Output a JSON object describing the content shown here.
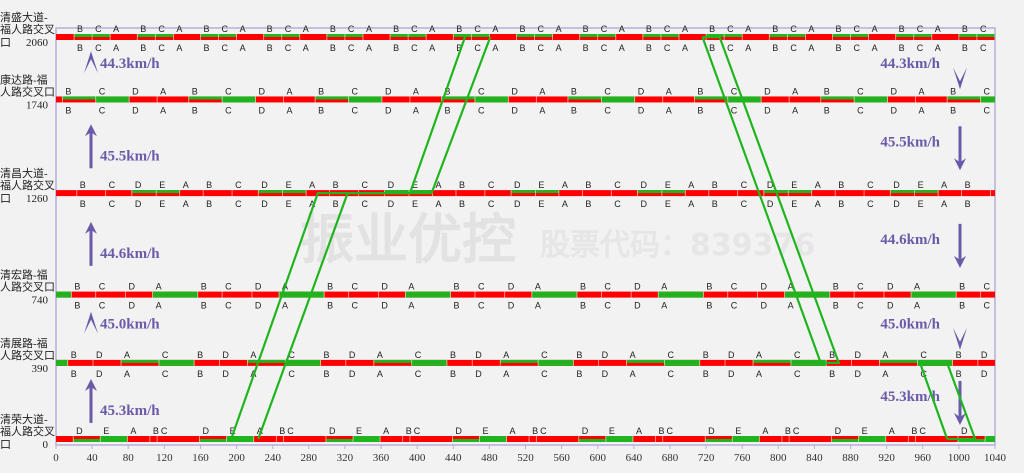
{
  "watermark": {
    "title": "振业优控",
    "subtitle": "股票代码：839376"
  },
  "chart_data": {
    "type": "time-space-diagram",
    "xlim": [
      0,
      1040
    ],
    "x_ticks": [
      0,
      40,
      80,
      120,
      160,
      200,
      240,
      280,
      320,
      360,
      400,
      440,
      480,
      520,
      560,
      600,
      640,
      680,
      720,
      760,
      800,
      840,
      880,
      920,
      960,
      1000,
      1040
    ],
    "ylim": [
      0,
      2060
    ],
    "colors": {
      "red": "#ff0000",
      "green": "#1fb51f",
      "axis": "#b8b0d8",
      "speed": "#6b5aa8"
    },
    "intersections": [
      {
        "name": "清盛大道-福人路交叉口",
        "distance": 2060,
        "cycle": 70,
        "offset": 20,
        "phases": [
          {
            "label": "B",
            "dur": 20,
            "green": "up"
          },
          {
            "label": "C",
            "dur": 20,
            "green": "up"
          },
          {
            "label": "A",
            "dur": 30,
            "green": "none"
          }
        ]
      },
      {
        "name": "康达路-福人路交叉口",
        "distance": 1740,
        "cycle": 140,
        "offset": 7,
        "phases": [
          {
            "label": "B",
            "dur": 37,
            "green": "up"
          },
          {
            "label": "C",
            "dur": 37,
            "green": "both"
          },
          {
            "label": "D",
            "dur": 31,
            "green": "none"
          },
          {
            "label": "A",
            "dur": 35,
            "green": "none"
          }
        ]
      },
      {
        "name": "清昌大道-福人路交叉口",
        "distance": 1260,
        "cycle": 140,
        "offset": -3,
        "phases": [
          {
            "label": "A",
            "dur": 26,
            "green": "none"
          },
          {
            "label": "B",
            "dur": 32,
            "green": "none"
          },
          {
            "label": "C",
            "dur": 29,
            "green": "none"
          },
          {
            "label": "D",
            "dur": 27,
            "green": "up"
          },
          {
            "label": "E",
            "dur": 26,
            "green": "up"
          }
        ]
      },
      {
        "name": "清宏路-福人路交叉口",
        "distance": 740,
        "cycle": 140,
        "offset": 17,
        "phases": [
          {
            "label": "B",
            "dur": 27,
            "green": "none"
          },
          {
            "label": "C",
            "dur": 33,
            "green": "none"
          },
          {
            "label": "D",
            "dur": 30,
            "green": "none"
          },
          {
            "label": "A",
            "dur": 50,
            "green": "both"
          }
        ]
      },
      {
        "name": "清展路-福人路交叉口",
        "distance": 390,
        "cycle": 140,
        "offset": 13,
        "phases": [
          {
            "label": "B",
            "dur": 28,
            "green": "none"
          },
          {
            "label": "D",
            "dur": 31,
            "green": "none"
          },
          {
            "label": "A",
            "dur": 42,
            "green": "up"
          },
          {
            "label": "C",
            "dur": 39,
            "green": "both"
          }
        ]
      },
      {
        "name": "清荣大道-福人路交叉口",
        "distance": 0,
        "cycle": 140,
        "offset": 19,
        "phases": [
          {
            "label": "D",
            "dur": 30,
            "green": "down"
          },
          {
            "label": "E",
            "dur": 30,
            "green": "both"
          },
          {
            "label": "A",
            "dur": 25,
            "green": "none"
          },
          {
            "label": "B",
            "dur": 8,
            "green": "none"
          },
          {
            "label": "C",
            "dur": 47,
            "green": "none"
          }
        ]
      }
    ],
    "speeds_up": [
      {
        "label": "44.3km/h",
        "from": 1740,
        "to": 2060,
        "arrow": "chevron"
      },
      {
        "label": "45.5km/h",
        "from": 1260,
        "to": 1740,
        "arrow": "arrow"
      },
      {
        "label": "44.6km/h",
        "from": 740,
        "to": 1260,
        "arrow": "arrow"
      },
      {
        "label": "45.0km/h",
        "from": 390,
        "to": 740,
        "arrow": "chevron"
      },
      {
        "label": "45.3km/h",
        "from": 0,
        "to": 390,
        "arrow": "arrow"
      }
    ],
    "speeds_down": [
      {
        "label": "44.3km/h",
        "from": 1740,
        "to": 2060,
        "arrow": "chevron"
      },
      {
        "label": "45.5km/h",
        "from": 1260,
        "to": 1740,
        "arrow": "arrow"
      },
      {
        "label": "44.6km/h",
        "from": 740,
        "to": 1260,
        "arrow": "arrow"
      },
      {
        "label": "45.0km/h",
        "from": 390,
        "to": 740,
        "arrow": "chevron"
      },
      {
        "label": "45.3km/h",
        "from": 0,
        "to": 390,
        "arrow": "arrow"
      }
    ],
    "green_wave_lines": [
      [
        [
          194,
          0
        ],
        [
          290,
          1260
        ],
        [
          392,
          1260
        ],
        [
          453,
          2060
        ]
      ],
      [
        [
          224,
          0
        ],
        [
          323,
          1260
        ],
        [
          416,
          1260
        ],
        [
          481,
          2060
        ]
      ],
      [
        [
          716,
          2060
        ],
        [
          735,
          2060
        ]
      ],
      [
        [
          716,
          2060
        ],
        [
          847,
          390
        ],
        [
          867,
          390
        ],
        [
          735,
          2060
        ]
      ],
      [
        [
          957,
          390
        ],
        [
          987,
          390
        ]
      ],
      [
        [
          957,
          390
        ],
        [
          987,
          0
        ]
      ],
      [
        [
          987,
          390
        ],
        [
          1018,
          0
        ],
        [
          987,
          0
        ]
      ]
    ]
  }
}
